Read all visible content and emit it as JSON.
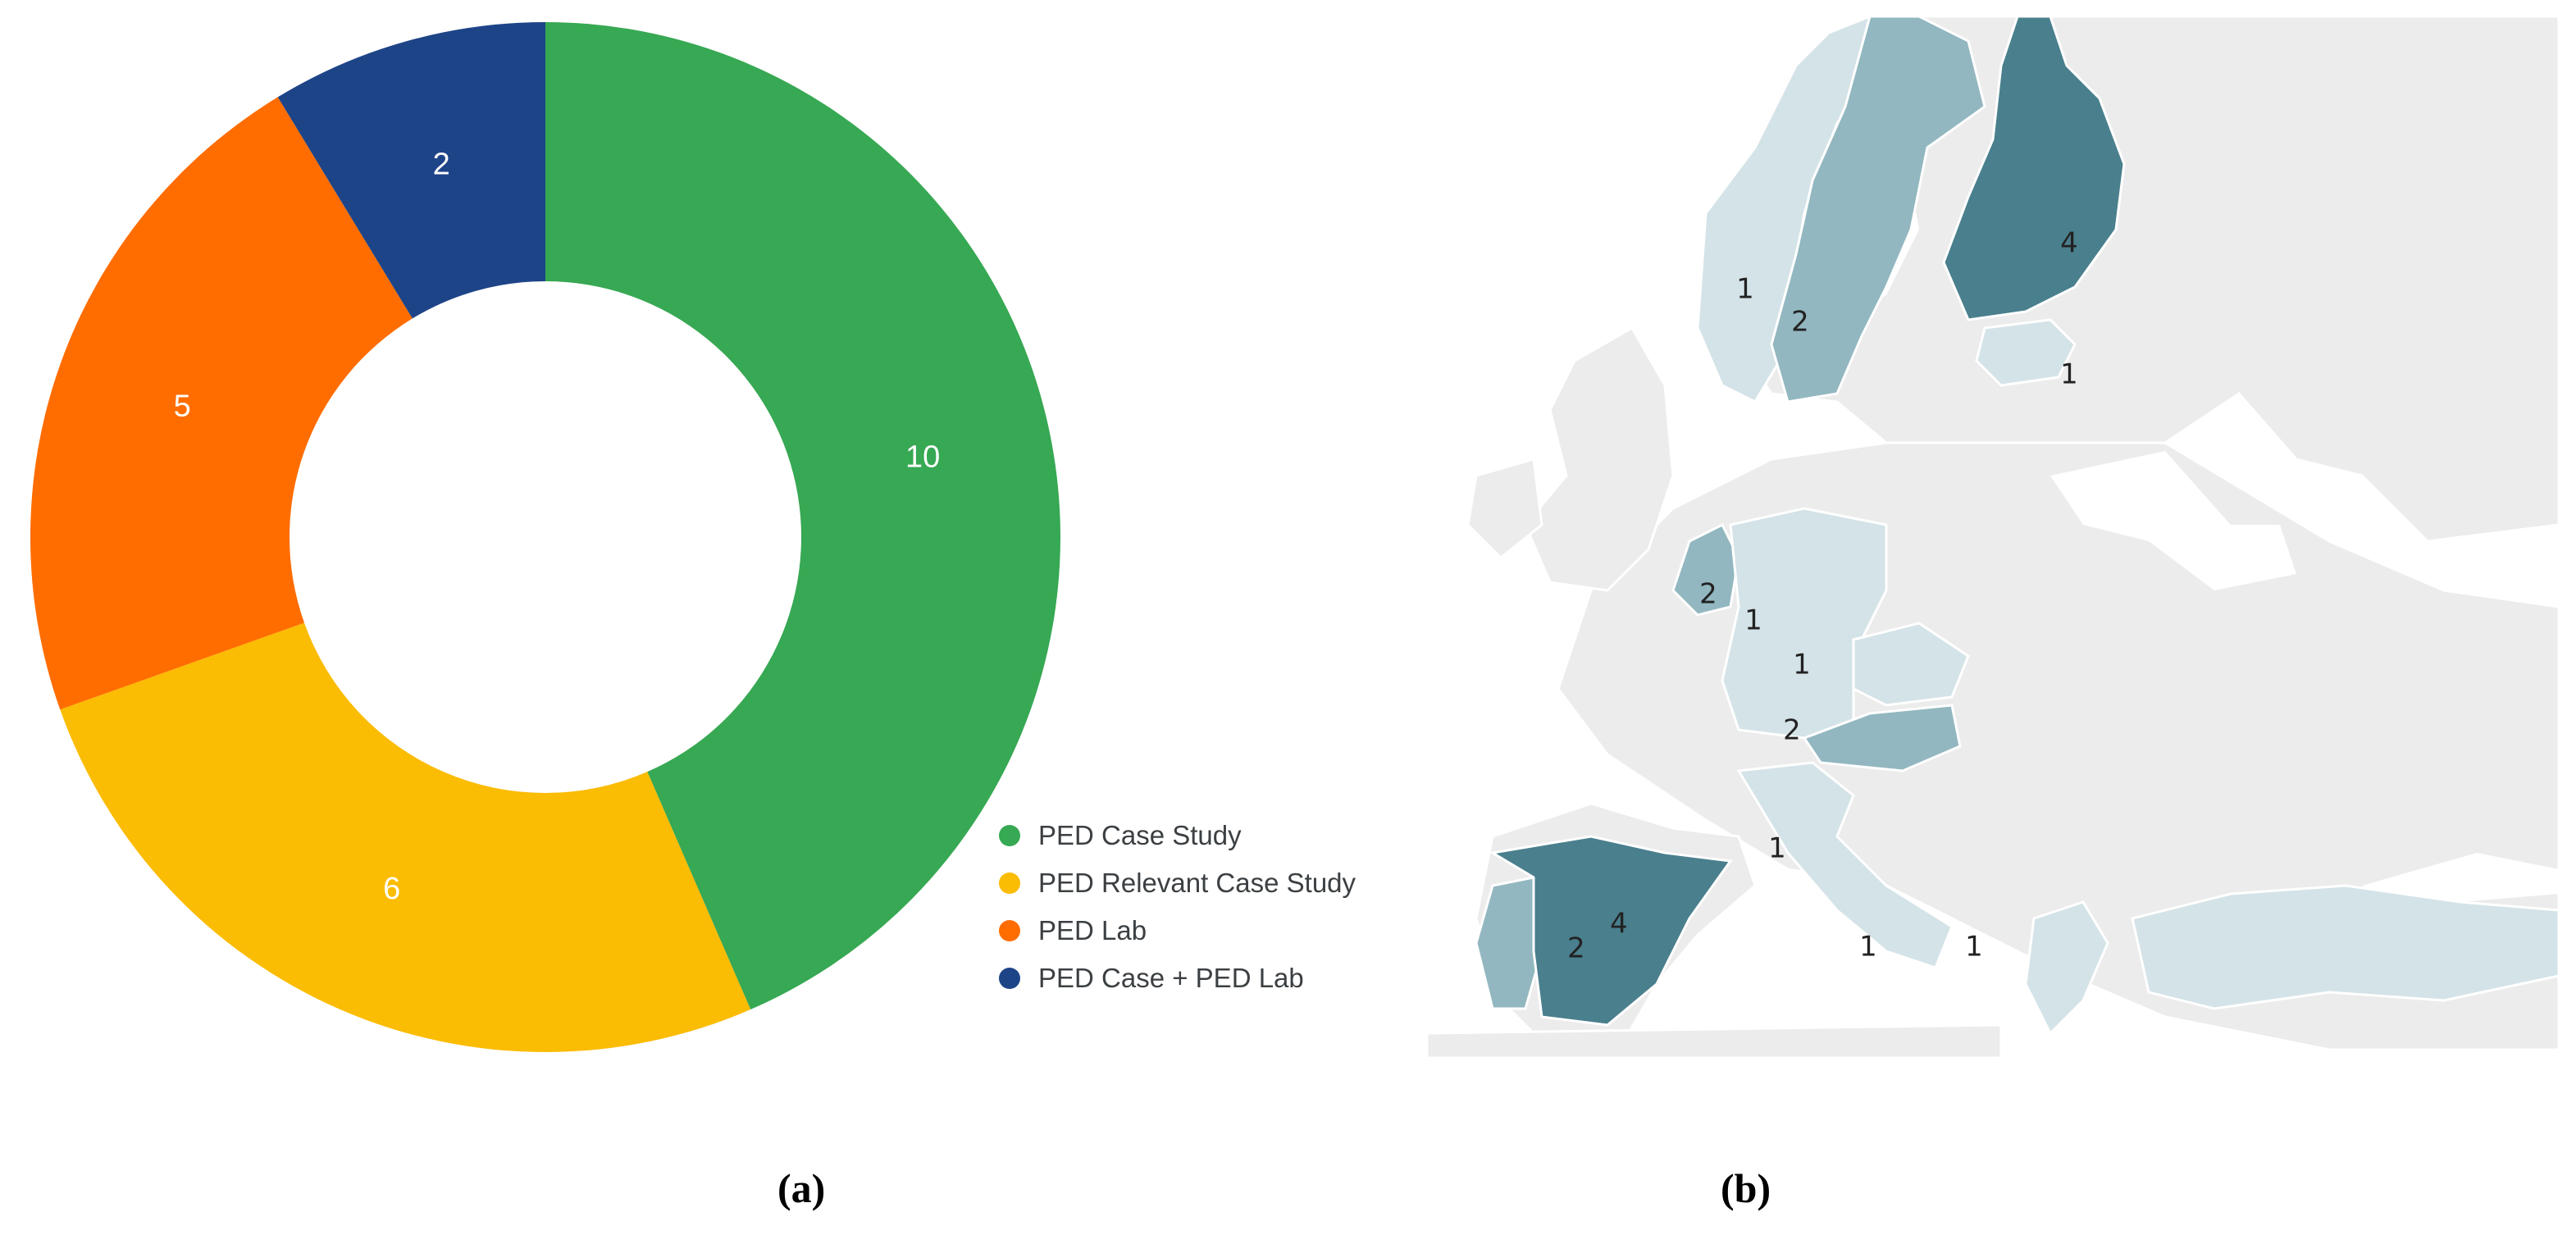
{
  "chart_data": [
    {
      "type": "pie",
      "variant": "donut",
      "categories": [
        "PED Case Study",
        "PED Relevant Case Study",
        "PED Lab",
        "PED Case + PED Lab"
      ],
      "values": [
        10,
        6,
        5,
        2
      ],
      "colors": [
        "#37a853",
        "#fbbc04",
        "#ff6d01",
        "#1e4488"
      ],
      "legend_position": "bottom-right",
      "title": ""
    },
    {
      "type": "choropleth",
      "regions": [
        {
          "name": "Norway",
          "value": 1
        },
        {
          "name": "Sweden",
          "value": 2
        },
        {
          "name": "Finland",
          "value": 4
        },
        {
          "name": "Estonia",
          "value": 1
        },
        {
          "name": "Netherlands",
          "value": 2
        },
        {
          "name": "Germany",
          "value": 1
        },
        {
          "name": "Czechia",
          "value": 1
        },
        {
          "name": "Austria",
          "value": 2
        },
        {
          "name": "Italy",
          "value": 1
        },
        {
          "name": "Portugal",
          "value": 2
        },
        {
          "name": "Spain",
          "value": 4
        },
        {
          "name": "Greece",
          "value": 1
        },
        {
          "name": "Turkey",
          "value": 1
        }
      ],
      "color_scale": {
        "1": "#d4e3e7",
        "2": "#92b7c0",
        "4": "#4a7f8d"
      }
    }
  ],
  "captions": {
    "a": "(a)",
    "b": "(b)"
  }
}
